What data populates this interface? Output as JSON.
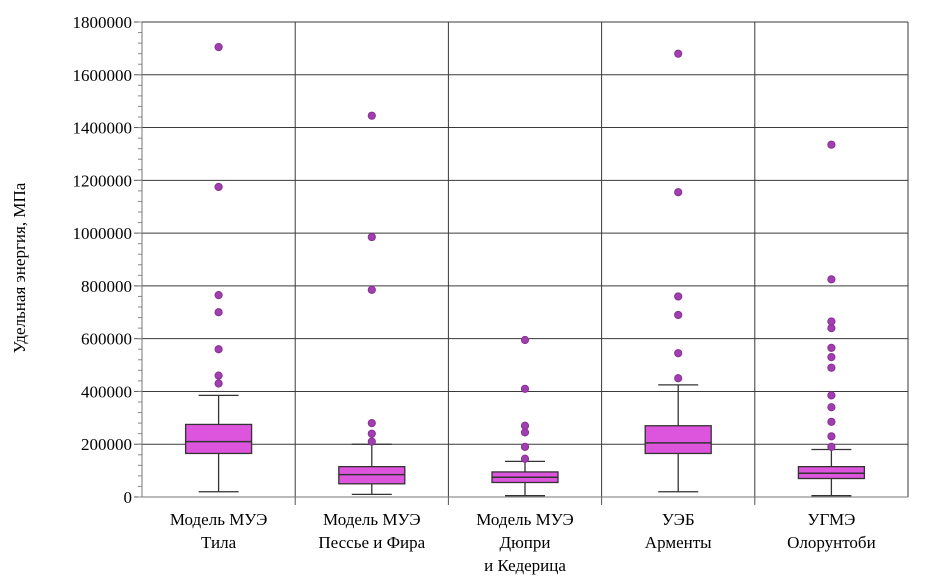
{
  "chart_data": {
    "type": "box",
    "ylabel": "Удельная энергия, МПа",
    "xlabel": "",
    "ylim": [
      0,
      1800000
    ],
    "yticks": [
      0,
      200000,
      400000,
      600000,
      800000,
      1000000,
      1200000,
      1400000,
      1600000,
      1800000
    ],
    "ytick_labels": [
      "0",
      "200000",
      "400000",
      "600000",
      "800000",
      "1000000",
      "1200000",
      "1400000",
      "1600000",
      "1800000"
    ],
    "grid": true,
    "box_color": "#dd55dd",
    "outlier_color": "#a040b0",
    "whisker_color": "#333333",
    "categories": [
      {
        "label_lines": [
          "Модель МУЭ",
          "Тила"
        ],
        "whisker_low": 20000,
        "q1": 165000,
        "median": 210000,
        "q3": 275000,
        "whisker_high": 385000,
        "outliers": [
          430000,
          460000,
          560000,
          700000,
          765000,
          1175000,
          1705000
        ]
      },
      {
        "label_lines": [
          "Модель МУЭ",
          "Пессье и Фира"
        ],
        "whisker_low": 10000,
        "q1": 50000,
        "median": 85000,
        "q3": 115000,
        "whisker_high": 200000,
        "outliers": [
          210000,
          240000,
          280000,
          785000,
          985000,
          1445000
        ]
      },
      {
        "label_lines": [
          "Модель МУЭ",
          "Дюпри",
          "и Кедерица"
        ],
        "whisker_low": 5000,
        "q1": 55000,
        "median": 75000,
        "q3": 95000,
        "whisker_high": 135000,
        "outliers": [
          145000,
          190000,
          245000,
          270000,
          410000,
          595000
        ]
      },
      {
        "label_lines": [
          "УЭБ",
          "Арменты"
        ],
        "whisker_low": 20000,
        "q1": 165000,
        "median": 205000,
        "q3": 270000,
        "whisker_high": 425000,
        "outliers": [
          450000,
          545000,
          690000,
          760000,
          1155000,
          1680000
        ]
      },
      {
        "label_lines": [
          "УГМЭ",
          "Олорунтоби"
        ],
        "whisker_low": 5000,
        "q1": 70000,
        "median": 90000,
        "q3": 115000,
        "whisker_high": 180000,
        "outliers": [
          190000,
          230000,
          285000,
          340000,
          385000,
          490000,
          530000,
          565000,
          640000,
          665000,
          825000,
          1335000
        ]
      }
    ]
  }
}
